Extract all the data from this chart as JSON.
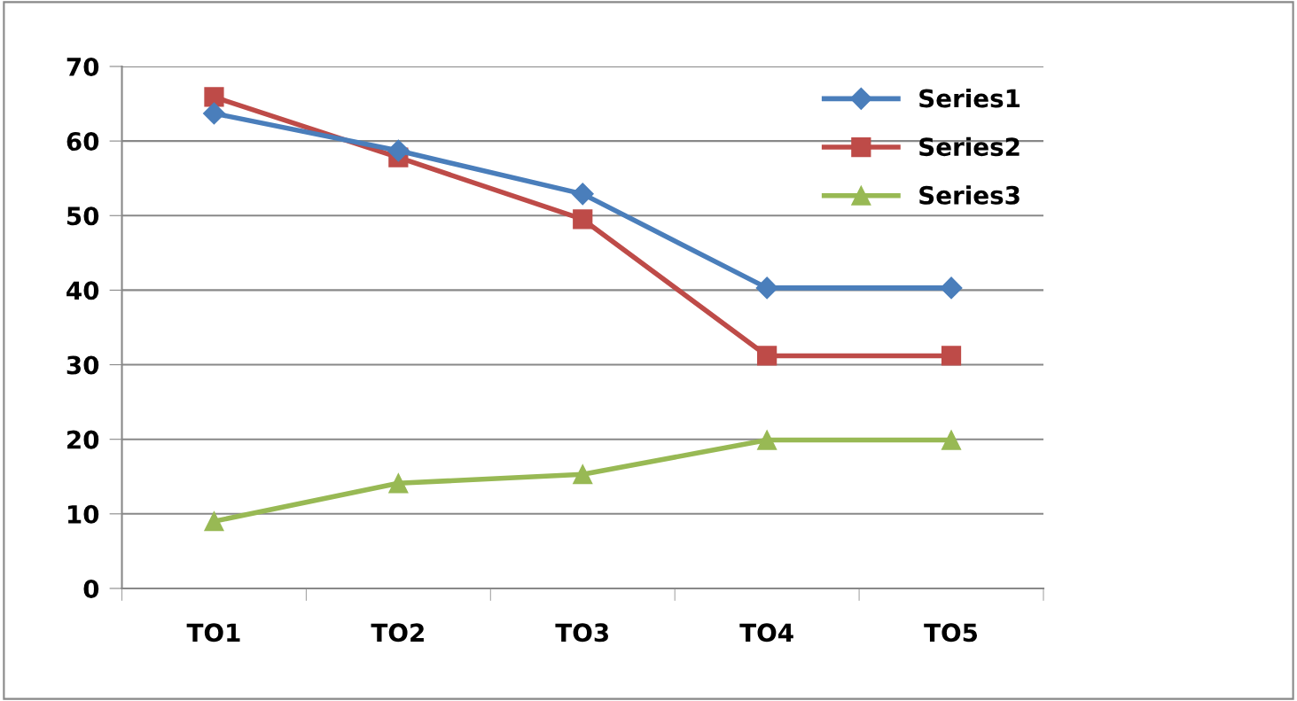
{
  "chart_data": {
    "type": "line",
    "categories": [
      "TO1",
      "TO2",
      "TO3",
      "TO4",
      "TO5"
    ],
    "series": [
      {
        "name": "Series1",
        "color": "#4a7ebb",
        "marker": "diamond",
        "values": [
          63.7,
          58.7,
          52.9,
          40.3,
          40.3
        ]
      },
      {
        "name": "Series2",
        "color": "#be4b48",
        "marker": "square",
        "values": [
          65.9,
          57.8,
          49.5,
          31.2,
          31.2
        ]
      },
      {
        "name": "Series3",
        "color": "#98b954",
        "marker": "triangle",
        "values": [
          9.0,
          14.1,
          15.3,
          19.9,
          19.9
        ]
      }
    ],
    "ylim": [
      0,
      70
    ],
    "yticks": [
      0,
      10,
      20,
      30,
      40,
      50,
      60,
      70
    ],
    "grid": "y",
    "legend": "top right",
    "line_style": "solid"
  }
}
